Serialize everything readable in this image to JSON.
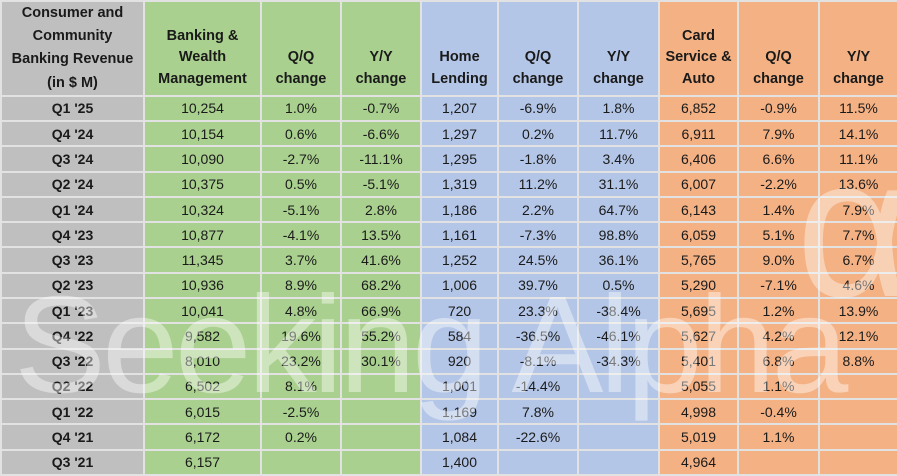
{
  "colors": {
    "row_header_bg": "#BFBFBF",
    "banking_bg": "#A9D08E",
    "home_lending_bg": "#B4C6E7",
    "card_bg": "#F4B183",
    "gridline": "#e2e2e2",
    "text": "#1a1a1a"
  },
  "watermark": {
    "text": "Seeking Alpha",
    "alpha_symbol": "α"
  },
  "chart_data": {
    "type": "table",
    "title": "Consumer and Community Banking Revenue (in $ M)",
    "corner_header": "Consumer and\nCommunity\nBanking Revenue\n(in $ M)",
    "column_groups": [
      {
        "name": "Banking & Wealth Management",
        "color": "#A9D08E"
      },
      {
        "name": "Home Lending",
        "color": "#B4C6E7"
      },
      {
        "name": "Card Service & Auto",
        "color": "#F4B183"
      }
    ],
    "columns": [
      "Banking & Wealth Management",
      "Q/Q change",
      "Y/Y change",
      "Home Lending",
      "Q/Q change",
      "Y/Y change",
      "Card Service & Auto",
      "Q/Q change",
      "Y/Y change"
    ],
    "rows": [
      [
        "Q1 '25",
        "10,254",
        "1.0%",
        "-0.7%",
        "1,207",
        "-6.9%",
        "1.8%",
        "6,852",
        "-0.9%",
        "11.5%"
      ],
      [
        "Q4 '24",
        "10,154",
        "0.6%",
        "-6.6%",
        "1,297",
        "0.2%",
        "11.7%",
        "6,911",
        "7.9%",
        "14.1%"
      ],
      [
        "Q3 '24",
        "10,090",
        "-2.7%",
        "-11.1%",
        "1,295",
        "-1.8%",
        "3.4%",
        "6,406",
        "6.6%",
        "11.1%"
      ],
      [
        "Q2 '24",
        "10,375",
        "0.5%",
        "-5.1%",
        "1,319",
        "11.2%",
        "31.1%",
        "6,007",
        "-2.2%",
        "13.6%"
      ],
      [
        "Q1 '24",
        "10,324",
        "-5.1%",
        "2.8%",
        "1,186",
        "2.2%",
        "64.7%",
        "6,143",
        "1.4%",
        "7.9%"
      ],
      [
        "Q4 '23",
        "10,877",
        "-4.1%",
        "13.5%",
        "1,161",
        "-7.3%",
        "98.8%",
        "6,059",
        "5.1%",
        "7.7%"
      ],
      [
        "Q3 '23",
        "11,345",
        "3.7%",
        "41.6%",
        "1,252",
        "24.5%",
        "36.1%",
        "5,765",
        "9.0%",
        "6.7%"
      ],
      [
        "Q2 '23",
        "10,936",
        "8.9%",
        "68.2%",
        "1,006",
        "39.7%",
        "0.5%",
        "5,290",
        "-7.1%",
        "4.6%"
      ],
      [
        "Q1 '23",
        "10,041",
        "4.8%",
        "66.9%",
        "720",
        "23.3%",
        "-38.4%",
        "5,695",
        "1.2%",
        "13.9%"
      ],
      [
        "Q4 '22",
        "9,582",
        "19.6%",
        "55.2%",
        "584",
        "-36.5%",
        "-46.1%",
        "5,627",
        "4.2%",
        "12.1%"
      ],
      [
        "Q3 '22",
        "8,010",
        "23.2%",
        "30.1%",
        "920",
        "-8.1%",
        "-34.3%",
        "5,401",
        "6.8%",
        "8.8%"
      ],
      [
        "Q2 '22",
        "6,502",
        "8.1%",
        "",
        "1,001",
        "-14.4%",
        "",
        "5,055",
        "1.1%",
        ""
      ],
      [
        "Q1 '22",
        "6,015",
        "-2.5%",
        "",
        "1,169",
        "7.8%",
        "",
        "4,998",
        "-0.4%",
        ""
      ],
      [
        "Q4 '21",
        "6,172",
        "0.2%",
        "",
        "1,084",
        "-22.6%",
        "",
        "5,019",
        "1.1%",
        ""
      ],
      [
        "Q3 '21",
        "6,157",
        "",
        "",
        "1,400",
        "",
        "",
        "4,964",
        "",
        ""
      ]
    ]
  }
}
